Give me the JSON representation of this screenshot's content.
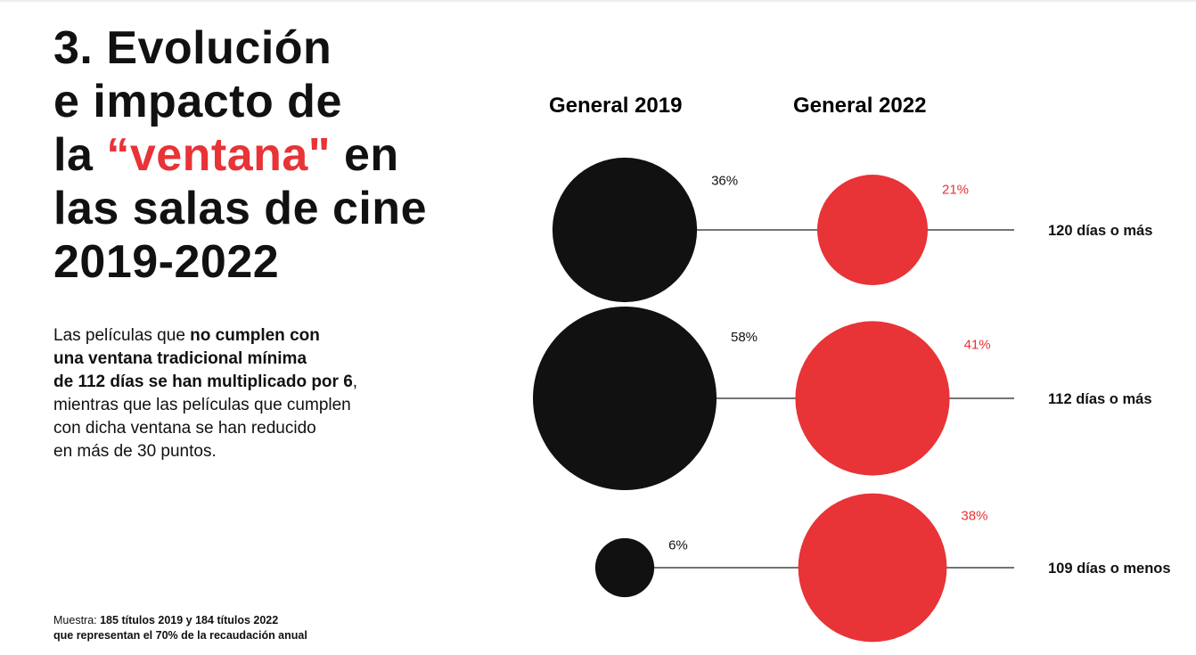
{
  "header": {
    "title_lines": [
      {
        "pre": "3. Evolución",
        "accent": "",
        "post": ""
      },
      {
        "pre": "e impacto de",
        "accent": "",
        "post": ""
      },
      {
        "pre": "la ",
        "accent": "“ventana\"",
        "post": " en"
      },
      {
        "pre": "las salas de cine",
        "accent": "",
        "post": ""
      },
      {
        "pre": "2019-2022",
        "accent": "",
        "post": ""
      }
    ]
  },
  "description": {
    "lines": [
      {
        "pre": "Las películas que ",
        "bold": "no cumplen con",
        "post": ""
      },
      {
        "pre": "",
        "bold": "una ventana tradicional mínima",
        "post": ""
      },
      {
        "pre": "",
        "bold": "de 112 días se han multiplicado por 6",
        "post": ","
      },
      {
        "pre": "mientras que las películas que cumplen",
        "bold": "",
        "post": ""
      },
      {
        "pre": "con dicha ventana se han reducido",
        "bold": "",
        "post": ""
      },
      {
        "pre": "en más de 30 puntos.",
        "bold": "",
        "post": ""
      }
    ]
  },
  "footnote": {
    "lines": [
      {
        "pre": "Muestra: ",
        "bold": "185 títulos 2019 y 184 títulos 2022",
        "post": ""
      },
      {
        "pre": "",
        "bold": "que representan el 70% de la recaudación anual",
        "post": ""
      }
    ]
  },
  "colors": {
    "series_2019": "#111111",
    "series_2022": "#e83337",
    "connector": "#222222",
    "text": "#111111"
  },
  "chart_data": {
    "type": "bubble",
    "categories": [
      "120 días o más",
      "112 días o más",
      "109 días o menos"
    ],
    "series": [
      {
        "name": "General 2019",
        "values": [
          36,
          58,
          6
        ],
        "labels": [
          "36%",
          "58%",
          "6%"
        ]
      },
      {
        "name": "General 2022",
        "values": [
          21,
          41,
          38
        ],
        "labels": [
          "21%",
          "41%",
          "38%"
        ]
      }
    ],
    "unit": "%",
    "size_encoding": "area",
    "legend": "top"
  }
}
